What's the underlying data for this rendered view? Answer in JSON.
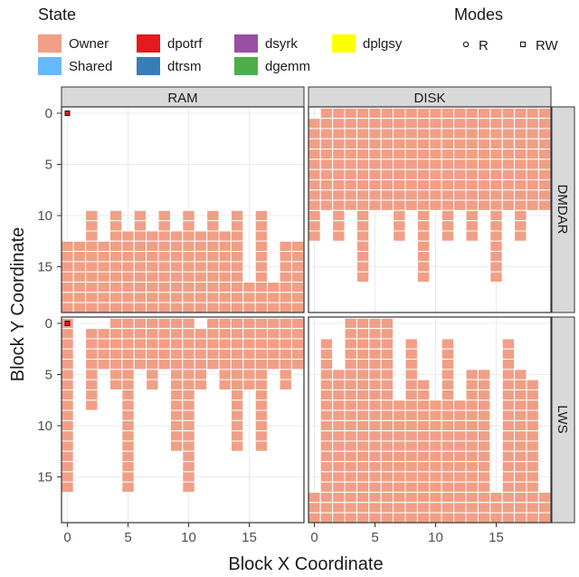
{
  "chart_data": {
    "type": "heatmap",
    "xlabel": "Block X Coordinate",
    "ylabel": "Block Y Coordinate",
    "xlim": [
      0,
      19
    ],
    "ylim": [
      19,
      0
    ],
    "x_ticks": [
      0,
      5,
      10,
      15
    ],
    "y_ticks": [
      0,
      5,
      10,
      15
    ],
    "grid": true,
    "legend_placement": "top",
    "legend": {
      "state_title": "State",
      "states": [
        {
          "name": "Owner",
          "color": "#F09F86"
        },
        {
          "name": "Shared",
          "color": "#66B8FF"
        },
        {
          "name": "dpotrf",
          "color": "#E41A1C"
        },
        {
          "name": "dtrsm",
          "color": "#377EB8"
        },
        {
          "name": "dsyrk",
          "color": "#984EA3"
        },
        {
          "name": "dgemm",
          "color": "#4DAF4A"
        },
        {
          "name": "dplgsy",
          "color": "#FFFF00"
        }
      ],
      "modes_title": "Modes",
      "modes": [
        {
          "name": "R",
          "symbol": "circle"
        },
        {
          "name": "RW",
          "symbol": "square"
        }
      ]
    },
    "columns": [
      "RAM",
      "DISK"
    ],
    "rows": [
      "DMDAR",
      "LWS"
    ],
    "panels": [
      {
        "column": "RAM",
        "row": "DMDAR",
        "note": "rows y=0..19, value = first Y occupied (Owner) for each X column 0..19 (cells filled to bottom)",
        "owner_start_y": [
          13,
          13,
          10,
          13,
          10,
          12,
          10,
          12,
          10,
          12,
          10,
          12,
          10,
          12,
          10,
          17,
          10,
          17,
          13,
          13
        ],
        "highlight": {
          "x": 0,
          "y": 0,
          "state": "dpotrf",
          "mode": "RW"
        }
      },
      {
        "column": "DISK",
        "row": "DMDAR",
        "note": "per X column: Owner from y=0 (x=0 from y=1) down to last occupied Y",
        "owner_start_y": [
          1,
          0,
          0,
          0,
          0,
          0,
          0,
          0,
          0,
          0,
          0,
          0,
          0,
          0,
          0,
          0,
          0,
          0,
          0,
          0
        ],
        "owner_end_y": [
          12,
          9,
          12,
          9,
          16,
          9,
          9,
          12,
          9,
          16,
          9,
          12,
          9,
          12,
          9,
          16,
          9,
          12,
          9,
          9
        ]
      },
      {
        "column": "RAM",
        "row": "LWS",
        "note": "per X column: Owner from start to end Y",
        "owner_start_y": [
          0,
          1,
          1,
          1,
          0,
          0,
          0,
          0,
          0,
          0,
          0,
          1,
          0,
          0,
          0,
          0,
          0,
          0,
          0,
          0
        ],
        "owner_end_y": [
          16,
          0,
          8,
          4,
          6,
          16,
          4,
          6,
          4,
          12,
          16,
          6,
          4,
          6,
          12,
          6,
          12,
          4,
          6,
          4
        ],
        "highlight": {
          "x": 0,
          "y": 0,
          "state": "dpotrf",
          "mode": "RW"
        }
      },
      {
        "column": "DISK",
        "row": "LWS",
        "note": "per X column: Owner from start Y down to 19",
        "owner_start_y": [
          17,
          2,
          5,
          0,
          0,
          0,
          0,
          8,
          2,
          6,
          8,
          2,
          8,
          5,
          5,
          17,
          2,
          5,
          6,
          17
        ]
      }
    ]
  }
}
